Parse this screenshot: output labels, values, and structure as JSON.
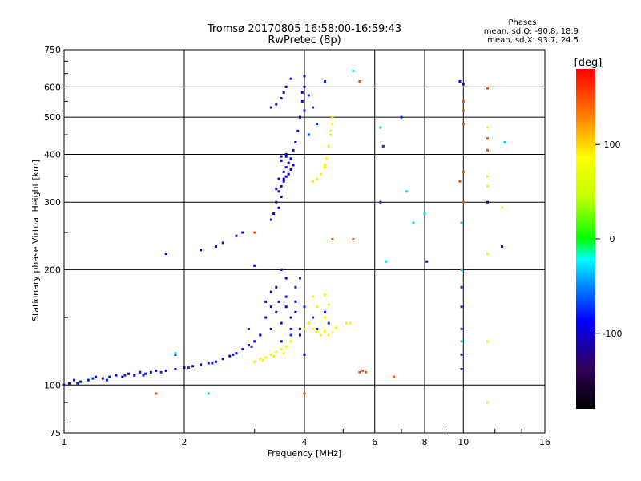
{
  "chart_data": {
    "type": "scatter",
    "title": "Tromsø 20170805 16:58:00-16:59:43",
    "subtitle": "RwPretec (8p)",
    "xlabel": "Frequency [MHz]",
    "ylabel": "Stationary phase Virtual Height [km]",
    "x_scale": "log",
    "y_scale": "log",
    "xlim": [
      1,
      16
    ],
    "ylim": [
      75,
      750
    ],
    "x_ticks": [
      1,
      2,
      4,
      6,
      8,
      10,
      16
    ],
    "x_tick_labels": [
      "1",
      "2",
      "4",
      "6",
      "8",
      "10",
      "16"
    ],
    "y_ticks": [
      75,
      100,
      200,
      300,
      400,
      500,
      600,
      750
    ],
    "y_tick_labels": [
      "75",
      "100",
      "200",
      "300",
      "400",
      "500",
      "600",
      "750"
    ],
    "grid": true,
    "phases_box": {
      "title": "Phases",
      "line_o": "mean, sd,O: -90.8, 18.9",
      "line_x": "mean, sd,X: 93.7, 24.5"
    },
    "colorbar": {
      "label": "[deg]",
      "range": [
        -180,
        180
      ],
      "ticks": [
        -100,
        0,
        100
      ],
      "tick_labels": [
        "-100",
        "0",
        "100"
      ]
    },
    "series": [
      {
        "phase_deg": -95,
        "points": [
          [
            1.0,
            100
          ],
          [
            1.03,
            101
          ],
          [
            1.06,
            103
          ],
          [
            1.1,
            102
          ],
          [
            1.15,
            103
          ],
          [
            1.2,
            105
          ],
          [
            1.25,
            104
          ],
          [
            1.3,
            105
          ],
          [
            1.35,
            106
          ],
          [
            1.4,
            105
          ],
          [
            1.45,
            107
          ],
          [
            1.5,
            106
          ],
          [
            1.55,
            108
          ],
          [
            1.6,
            107
          ],
          [
            1.65,
            108
          ],
          [
            1.7,
            109
          ],
          [
            1.8,
            109
          ],
          [
            1.9,
            110
          ],
          [
            2.0,
            111
          ],
          [
            2.1,
            112
          ],
          [
            2.2,
            113
          ],
          [
            2.3,
            114
          ],
          [
            2.4,
            115
          ],
          [
            2.5,
            117
          ],
          [
            2.6,
            119
          ],
          [
            2.7,
            121
          ],
          [
            2.8,
            124
          ],
          [
            2.9,
            127
          ],
          [
            3.0,
            130
          ],
          [
            3.1,
            135
          ],
          [
            3.2,
            150
          ],
          [
            3.3,
            160
          ],
          [
            3.4,
            180
          ],
          [
            3.5,
            200
          ],
          [
            3.3,
            140
          ],
          [
            3.4,
            155
          ],
          [
            3.45,
            165
          ],
          [
            3.6,
            170
          ],
          [
            3.7,
            150
          ],
          [
            3.8,
            165
          ],
          [
            3.5,
            145
          ],
          [
            3.6,
            190
          ],
          [
            3.3,
            175
          ],
          [
            3.2,
            165
          ],
          [
            3.7,
            140
          ],
          [
            3.8,
            155
          ],
          [
            3.9,
            135
          ],
          [
            4.0,
            120
          ],
          [
            3.5,
            130
          ],
          [
            3.6,
            160
          ],
          [
            3.4,
            300
          ],
          [
            3.45,
            320
          ],
          [
            3.5,
            330
          ],
          [
            3.55,
            340
          ],
          [
            3.6,
            350
          ],
          [
            3.45,
            290
          ],
          [
            3.5,
            310
          ],
          [
            3.55,
            360
          ],
          [
            3.6,
            370
          ],
          [
            3.65,
            380
          ],
          [
            3.7,
            390
          ],
          [
            3.5,
            395
          ],
          [
            3.6,
            400
          ],
          [
            3.75,
            410
          ],
          [
            3.8,
            430
          ],
          [
            3.85,
            460
          ],
          [
            3.9,
            500
          ],
          [
            3.95,
            550
          ],
          [
            4.0,
            600
          ],
          [
            4.0,
            640
          ],
          [
            3.95,
            580
          ],
          [
            3.35,
            280
          ],
          [
            3.3,
            270
          ],
          [
            3.55,
            345
          ],
          [
            3.65,
            355
          ],
          [
            3.7,
            365
          ],
          [
            3.75,
            375
          ],
          [
            3.6,
            395
          ],
          [
            3.5,
            385
          ],
          [
            3.45,
            345
          ],
          [
            3.4,
            325
          ],
          [
            3.4,
            540
          ],
          [
            3.5,
            560
          ],
          [
            3.6,
            600
          ],
          [
            3.7,
            630
          ],
          [
            3.55,
            580
          ],
          [
            3.3,
            530
          ],
          [
            2.4,
            230
          ],
          [
            2.5,
            235
          ],
          [
            2.7,
            245
          ],
          [
            2.8,
            250
          ],
          [
            1.8,
            220
          ],
          [
            8.1,
            210
          ],
          [
            9.8,
            620
          ],
          [
            10.0,
            610
          ],
          [
            11.5,
            300
          ],
          [
            12.5,
            230
          ],
          [
            3.0,
            205
          ],
          [
            2.2,
            225
          ]
        ]
      },
      {
        "phase_deg": -75,
        "points": [
          [
            1.08,
            101
          ],
          [
            1.18,
            104
          ],
          [
            1.28,
            103
          ],
          [
            1.42,
            106
          ],
          [
            1.58,
            106
          ],
          [
            1.75,
            108
          ],
          [
            2.05,
            111
          ],
          [
            2.35,
            114
          ],
          [
            2.65,
            120
          ],
          [
            2.95,
            126
          ],
          [
            3.9,
            140
          ],
          [
            4.2,
            150
          ],
          [
            4.3,
            140
          ],
          [
            4.5,
            155
          ],
          [
            4.1,
            145
          ],
          [
            3.8,
            180
          ],
          [
            3.7,
            135
          ],
          [
            3.9,
            190
          ],
          [
            4.6,
            145
          ],
          [
            4.0,
            160
          ],
          [
            4.1,
            570
          ],
          [
            4.2,
            530
          ],
          [
            4.3,
            480
          ],
          [
            4.0,
            520
          ],
          [
            4.1,
            450
          ],
          [
            9.9,
            200
          ],
          [
            9.9,
            180
          ],
          [
            9.9,
            160
          ],
          [
            9.9,
            140
          ],
          [
            9.9,
            120
          ],
          [
            9.9,
            110
          ],
          [
            6.2,
            300
          ],
          [
            6.3,
            420
          ],
          [
            7.0,
            500
          ],
          [
            4.5,
            620
          ],
          [
            1.9,
            120
          ],
          [
            2.9,
            140
          ]
        ]
      },
      {
        "phase_deg": 90,
        "points": [
          [
            3.0,
            115
          ],
          [
            3.1,
            117
          ],
          [
            3.2,
            118
          ],
          [
            3.3,
            120
          ],
          [
            3.4,
            122
          ],
          [
            3.5,
            124
          ],
          [
            3.6,
            126
          ],
          [
            3.7,
            130
          ],
          [
            3.15,
            116
          ],
          [
            3.35,
            119
          ],
          [
            3.55,
            121
          ],
          [
            4.0,
            140
          ],
          [
            4.1,
            145
          ],
          [
            4.2,
            140
          ],
          [
            4.3,
            138
          ],
          [
            4.4,
            135
          ],
          [
            4.5,
            138
          ],
          [
            4.6,
            135
          ],
          [
            4.7,
            137
          ],
          [
            4.8,
            141
          ],
          [
            4.3,
            160
          ],
          [
            4.5,
            150
          ],
          [
            4.6,
            162
          ],
          [
            4.2,
            170
          ],
          [
            4.5,
            172
          ],
          [
            4.2,
            340
          ],
          [
            4.3,
            345
          ],
          [
            4.4,
            355
          ],
          [
            4.5,
            370
          ],
          [
            4.55,
            390
          ],
          [
            4.6,
            420
          ],
          [
            4.65,
            450
          ],
          [
            4.7,
            480
          ],
          [
            4.7,
            500
          ],
          [
            4.65,
            460
          ],
          [
            4.5,
            375
          ],
          [
            11.5,
            220
          ],
          [
            11.5,
            350
          ],
          [
            11.5,
            330
          ],
          [
            11.5,
            470
          ],
          [
            12.5,
            290
          ],
          [
            11.5,
            130
          ],
          [
            11.5,
            90
          ],
          [
            5.2,
            145
          ],
          [
            5.1,
            145
          ]
        ]
      },
      {
        "phase_deg": 150,
        "points": [
          [
            5.5,
            108
          ],
          [
            5.6,
            109
          ],
          [
            5.7,
            108
          ],
          [
            6.7,
            105
          ],
          [
            10.0,
            550
          ],
          [
            10.0,
            520
          ],
          [
            10.0,
            480
          ],
          [
            10.0,
            360
          ],
          [
            10.0,
            300
          ],
          [
            11.5,
            410
          ],
          [
            11.5,
            440
          ],
          [
            11.5,
            595
          ],
          [
            1.7,
            95
          ],
          [
            3.0,
            250
          ],
          [
            5.3,
            240
          ],
          [
            4.0,
            95
          ],
          [
            4.7,
            240
          ],
          [
            5.5,
            620
          ],
          [
            9.8,
            340
          ]
        ]
      },
      {
        "phase_deg": -30,
        "points": [
          [
            1.9,
            121
          ],
          [
            2.3,
            95
          ],
          [
            9.9,
            130
          ],
          [
            9.9,
            200
          ],
          [
            6.2,
            470
          ],
          [
            7.2,
            320
          ],
          [
            7.5,
            265
          ],
          [
            8.0,
            280
          ],
          [
            9.9,
            265
          ],
          [
            12.7,
            430
          ],
          [
            5.3,
            660
          ],
          [
            6.4,
            210
          ]
        ]
      }
    ]
  }
}
